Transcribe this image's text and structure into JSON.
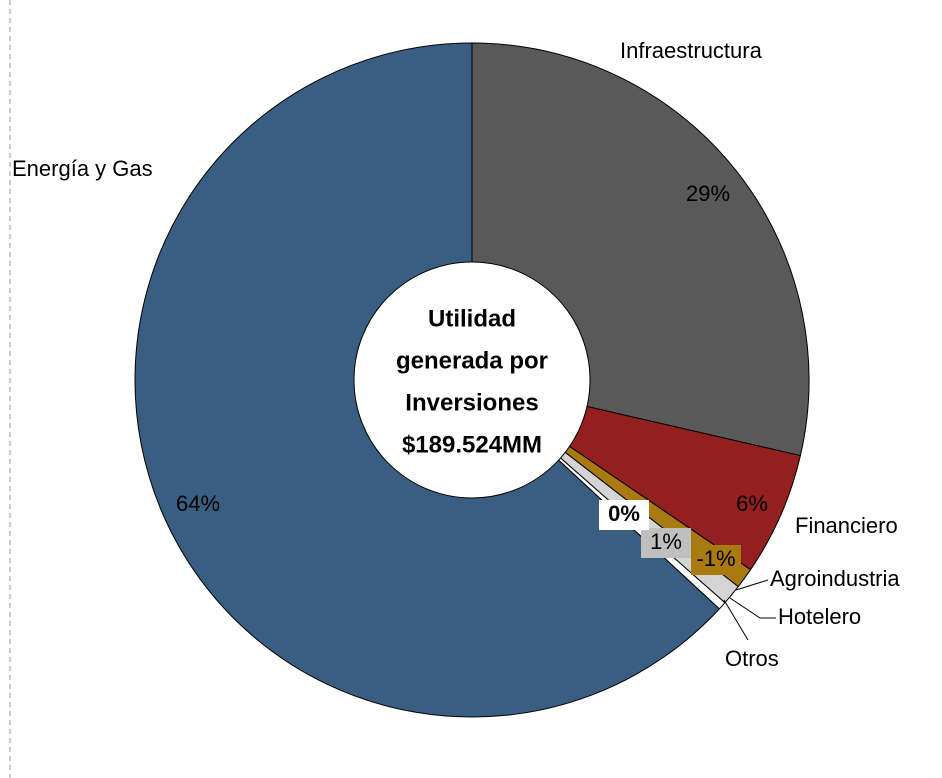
{
  "chart_data": {
    "type": "donut",
    "center_text": [
      "Utilidad",
      "generada por",
      "Inversiones",
      "$189.524MM"
    ],
    "categories": [
      "Infraestructura",
      "Financiero",
      "Agroindustria",
      "Hotelero",
      "Otros",
      "Energía y Gas"
    ],
    "values": [
      29,
      6,
      -1,
      1,
      0,
      64
    ],
    "value_labels": [
      "29%",
      "6%",
      "-1%",
      "1%",
      "0%",
      "64%"
    ],
    "colors": [
      "#595959",
      "#931f1f",
      "#a87a10",
      "#d4d4d4",
      "#ffffff",
      "#3a5e82"
    ]
  }
}
